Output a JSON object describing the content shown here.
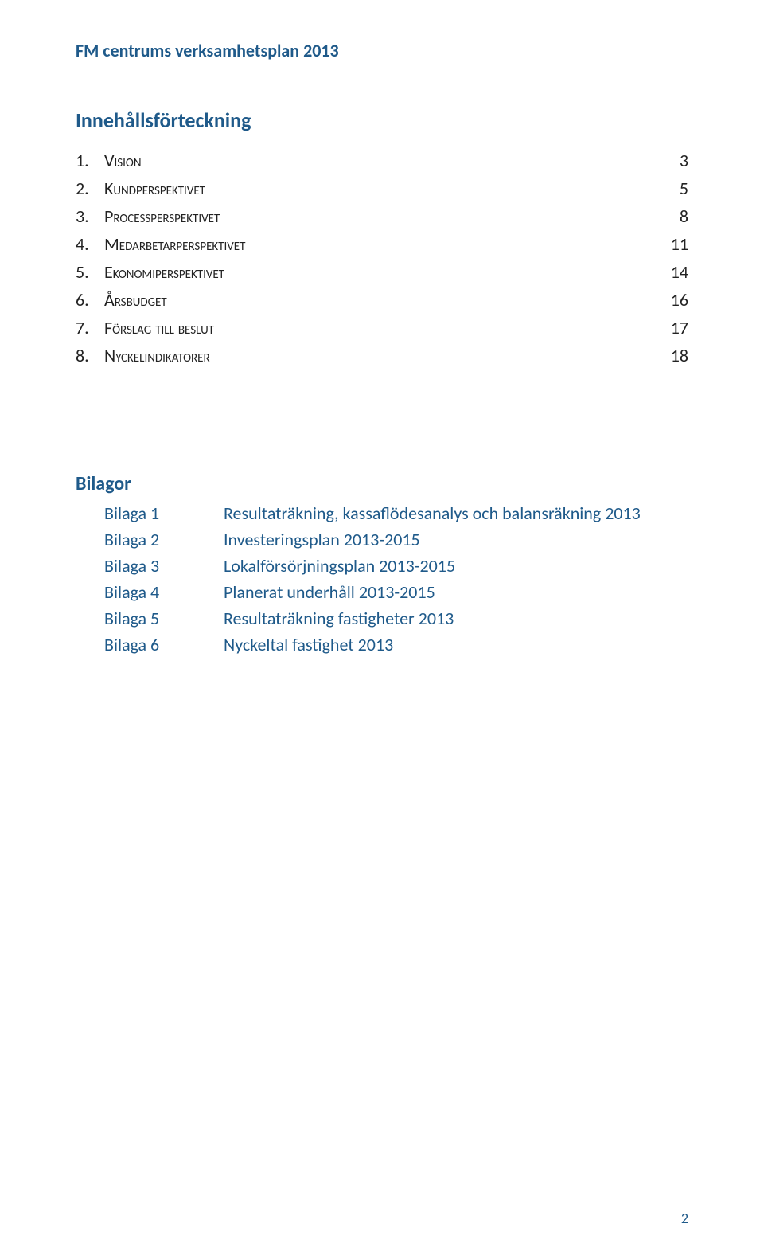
{
  "colors": {
    "blue": "#1f5a8a",
    "black": "#222222",
    "background": "#ffffff"
  },
  "typography": {
    "base_font": "Calibri",
    "header_size_pt": 16,
    "heading_size_pt": 19,
    "body_size_pt": 16
  },
  "header": {
    "title": "FM centrums verksamhetsplan 2013"
  },
  "toc": {
    "heading": "Innehållsförteckning",
    "items": [
      {
        "num": "1.",
        "label": "Vision",
        "page": "3"
      },
      {
        "num": "2.",
        "label": "Kundperspektivet",
        "page": "5"
      },
      {
        "num": "3.",
        "label": "Processperspektivet",
        "page": "8"
      },
      {
        "num": "4.",
        "label": "Medarbetarperspektivet",
        "page": "11"
      },
      {
        "num": "5.",
        "label": "Ekonomiperspektivet",
        "page": "14"
      },
      {
        "num": "6.",
        "label": "Årsbudget",
        "page": "16"
      },
      {
        "num": "7.",
        "label": "Förslag till beslut",
        "page": "17"
      },
      {
        "num": "8.",
        "label": "Nyckelindikatorer",
        "page": "18"
      }
    ]
  },
  "bilagor": {
    "heading": "Bilagor",
    "items": [
      {
        "key": "Bilaga 1",
        "desc": "Resultaträkning, kassaflödesanalys och balansräkning 2013"
      },
      {
        "key": "Bilaga 2",
        "desc": "Investeringsplan 2013-2015"
      },
      {
        "key": "Bilaga 3",
        "desc": "Lokalförsörjningsplan 2013-2015"
      },
      {
        "key": "Bilaga 4",
        "desc": "Planerat underhåll 2013-2015"
      },
      {
        "key": "Bilaga 5",
        "desc": "Resultaträkning fastigheter 2013"
      },
      {
        "key": "Bilaga 6",
        "desc": "Nyckeltal fastighet 2013"
      }
    ]
  },
  "page_number": "2"
}
